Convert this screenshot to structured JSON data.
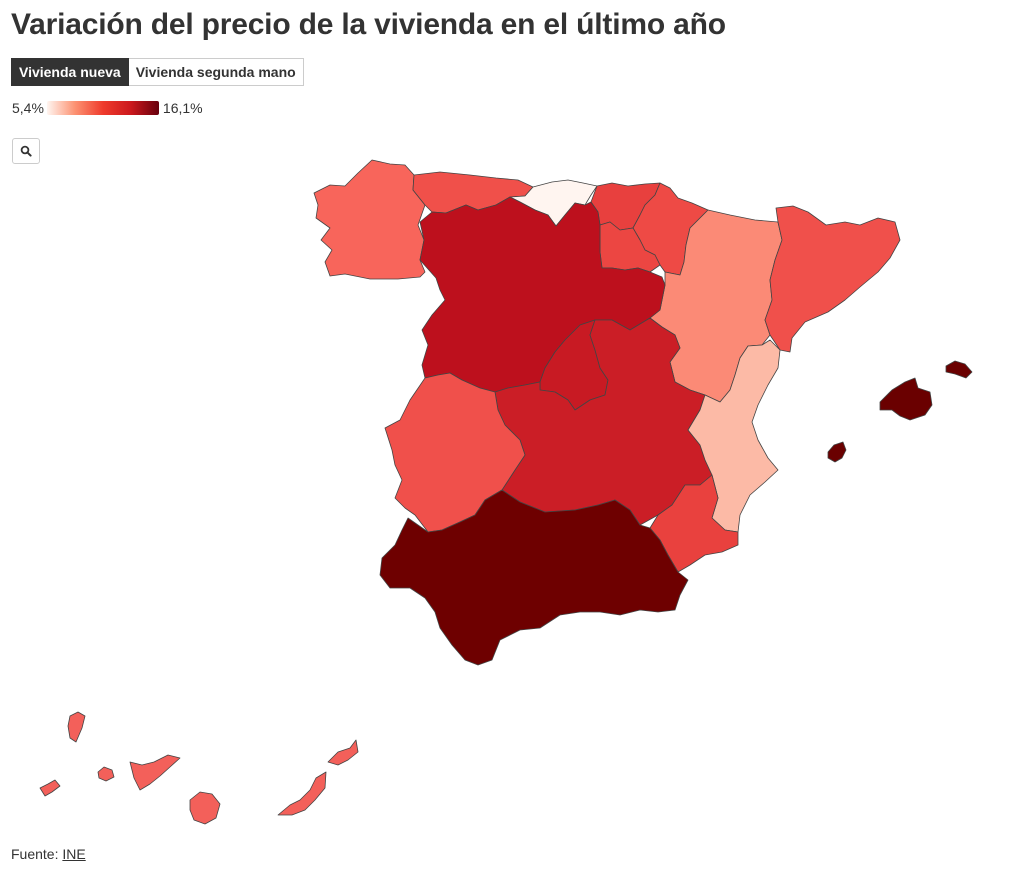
{
  "header": {
    "title": "Variación del precio de la vivienda en el último año"
  },
  "tabs": [
    {
      "label": "Vivienda nueva",
      "active": true
    },
    {
      "label": "Vivienda segunda mano",
      "active": false
    }
  ],
  "legend": {
    "min_label": "5,4%",
    "max_label": "16,1%",
    "colors": [
      "#fff5f0",
      "#fc9272",
      "#ef3b2c",
      "#cb181d",
      "#67000d"
    ]
  },
  "controls": {
    "zoom_icon": "search-icon"
  },
  "map": {
    "regions": [
      {
        "name": "Galicia",
        "color": "#f8655b"
      },
      {
        "name": "Asturias",
        "color": "#f0504a"
      },
      {
        "name": "Cantabria",
        "color": "#fff5f0"
      },
      {
        "name": "País Vasco",
        "color": "#e8403e"
      },
      {
        "name": "Navarra",
        "color": "#ee4a45"
      },
      {
        "name": "La Rioja",
        "color": "#ec4642"
      },
      {
        "name": "Aragón",
        "color": "#fb8a76"
      },
      {
        "name": "Cataluña",
        "color": "#f0504b"
      },
      {
        "name": "Castilla y León",
        "color": "#bd101d"
      },
      {
        "name": "Madrid",
        "color": "#c81a23"
      },
      {
        "name": "Castilla-La Mancha",
        "color": "#cb1e26"
      },
      {
        "name": "Extremadura",
        "color": "#f0504b"
      },
      {
        "name": "Comunidad Valenciana",
        "color": "#fcbaa6"
      },
      {
        "name": "Región de Murcia",
        "color": "#e9413e"
      },
      {
        "name": "Andalucía",
        "color": "#6e0000"
      },
      {
        "name": "Islas Baleares",
        "color": "#6a0000"
      },
      {
        "name": "Canarias",
        "color": "#f3605a"
      }
    ]
  },
  "footer": {
    "source_label": "Fuente:",
    "source_link": "INE"
  }
}
